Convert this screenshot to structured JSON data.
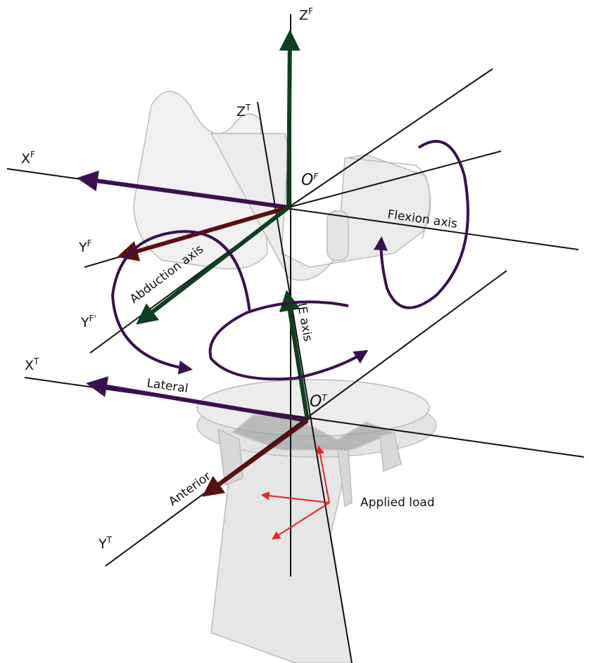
{
  "axes": {
    "zf": {
      "base": "Z",
      "sup": "F"
    },
    "zt": {
      "base": "Z",
      "sup": "T"
    },
    "xf": {
      "base": "X",
      "sup": "F"
    },
    "of": {
      "base": "O",
      "sup": "F"
    },
    "yf": {
      "base": "Y",
      "sup": "F"
    },
    "yf2": {
      "base": "Y",
      "sup": "F'"
    },
    "xt": {
      "base": "X",
      "sup": "T"
    },
    "ot": {
      "base": "O",
      "sup": "T"
    },
    "yt": {
      "base": "Y",
      "sup": "T"
    }
  },
  "annotations": {
    "flexion": "Flexion axis",
    "abduction": "Abduction axis",
    "ie": "IE axis",
    "lateral": "Lateral",
    "anterior": "Anterior",
    "load": "Applied load"
  }
}
